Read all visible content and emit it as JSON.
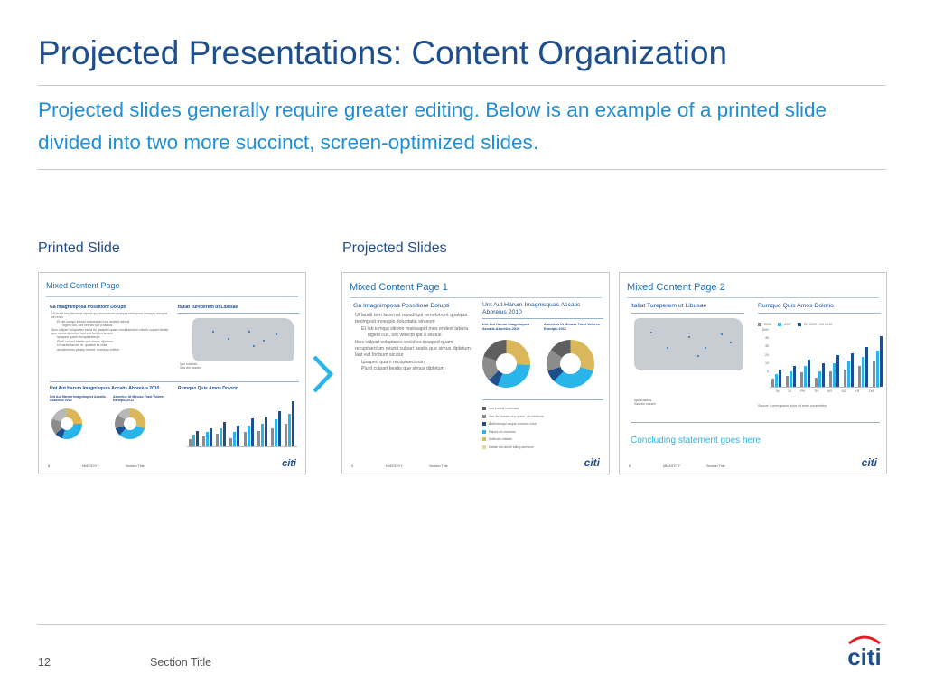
{
  "title": "Projected Presentations: Content Organization",
  "subtitle": "Projected slides generally require greater editing. Below is an example of a printed slide divided into two more succinct, screen-optimized slides.",
  "labels": {
    "printed": "Printed Slide",
    "projected": "Projected Slides"
  },
  "footer": {
    "page": "12",
    "section": "Section Title",
    "logo": "citi"
  },
  "colors": {
    "title": "#1f4e8c",
    "subtitle": "#1f8fd6",
    "accent_dark": "#1f4e8c",
    "accent_light": "#29b5ea",
    "gold": "#d9b75a",
    "gray": "#8c8c8c"
  },
  "thumb_footer": {
    "page_a": "8",
    "page_b": "9",
    "date": "MM/DD/YY",
    "section": "Section Title",
    "logo": "citi"
  },
  "printed_slide": {
    "head": "Mixed Content Page",
    "left_heading": "Ga Imagnimposa Possitiore Dolupti",
    "left_body": [
      "Ut laudit tem facernat repudi qui remolorrunt quatqua tenimpost mosapis dolupta sin eum",
      "Et lab iumqui sitione maiosapid mos endest labora",
      "Iligeni cus, unt velecto ipit a sitatus",
      "Ibus culpari voluptates escid es ipsaped quam recuptaectum reiunti culpari beatis que simus dipletum laut eat foribum sicatur",
      "Ipsaped quam recuptaecteum",
      "Plurit culpari beatis que simus dipletum",
      "Ut mintis facum re, quatem et vella",
      "accaborerus plitaep lenimt, nonsequ volibre"
    ],
    "map_heading": "Italiat Tureperem ut Libusae",
    "map_legend": [
      "Iqui cusetas",
      "Sas dis nosam"
    ],
    "donut_heading": "Unt Aut Harum Imagnisquas Accatis Aboreius 2010",
    "donut_a": "Unt Aut Harum Imagnisques Accatis Aboreius 2010",
    "donut_b": "Aborelus Ut Minusc Trast Volores Earolpic 2011",
    "bars_heading": "Rumquo Quis Amos Dolorio"
  },
  "projected_1": {
    "head": "Mixed Content Page 1",
    "left_heading": "Ga Imagnimposa Possitiore Dolupti",
    "bullets": [
      "Ut laudit tem facernat repudi qui remolorrunt quatqua tenimpost mosapis doluptatia sin eum",
      "Et lab iumqui sitione maiosapid mos endest labora",
      "Iligeni cus, unt velecto ipit a sitatus",
      "Ibus culpari voluptates escid es ipsaped quam recuptaectum reiunti culpari beatis que simus dipletum laut eat foribum sicatur",
      "Ipsaped quam recuptaecteum",
      "Plurit culpari beatis que simus dipletum"
    ],
    "right_heading": "Unt Aut Harum Imagnisquas Accatis Aboreius 2010",
    "donut_a": "Unt Aut Harum Imagnisques Accatis Aboreius 2010",
    "donut_b": "Aborelus Ut Minusc Trast Volores Earolpic 2011",
    "legend": [
      "Iqui comnit iostestias",
      "Sas dis nosam req quam, vel milabore",
      "Boffictumqui seque volorum volor",
      "Paped ne nossime",
      "Sofficam instiam",
      "Estiati nia sinvel atitug acestum"
    ]
  },
  "projected_2": {
    "head": "Mixed Content Page 2",
    "map_heading": "Italiat Tureperem ut Libusae",
    "map_legend": [
      "Iqui cusetas",
      "Sas dis nosam"
    ],
    "chart_heading": "Rumquo Quis Amos Dolorio",
    "chart_legend": [
      "2005",
      "2007",
      "SH 2009 - SH 2010"
    ],
    "y_ticks": [
      "50%",
      "40",
      "30",
      "20",
      "10",
      "0"
    ],
    "categories": [
      "IN",
      "ID",
      "PH",
      "TH",
      "MY",
      "SG",
      "KR",
      "TW"
    ],
    "source": "Source: Lorem ipsum dolor sit amet consectetur",
    "conclusion": "Concluding statement goes here"
  },
  "chart_data": {
    "type": "bar",
    "categories": [
      "IN",
      "ID",
      "PH",
      "TH",
      "MY",
      "SG",
      "KR",
      "TW"
    ],
    "series": [
      {
        "name": "2005",
        "values": [
          5,
          7,
          9,
          6,
          10,
          11,
          13,
          16
        ]
      },
      {
        "name": "2007",
        "values": [
          8,
          10,
          13,
          10,
          15,
          16,
          19,
          23
        ]
      },
      {
        "name": "SH 2009 - SH 2010",
        "values": [
          11,
          13,
          17,
          15,
          20,
          21,
          25,
          32
        ]
      }
    ],
    "ylim": [
      0,
      50
    ]
  }
}
